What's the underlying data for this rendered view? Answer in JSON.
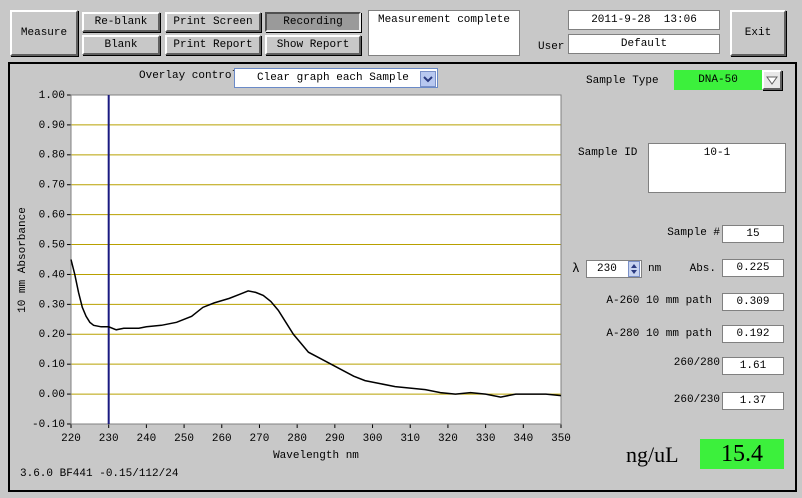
{
  "toolbar": {
    "measure": "Measure",
    "reblank": "Re-blank",
    "blank": "Blank",
    "print_screen": "Print Screen",
    "print_report": "Print Report",
    "recording": "Recording",
    "show_report": "Show Report",
    "status": "Measurement complete",
    "datetime": "2011-9-28  13:06",
    "user_label": "User",
    "user": "Default",
    "exit": "Exit"
  },
  "overlay": {
    "label": "Overlay control",
    "value": "Clear graph each Sample"
  },
  "chart_data": {
    "type": "line",
    "x_label": "Wavelength nm",
    "y_label": "10 mm Absorbance",
    "x": [
      220,
      221,
      222,
      223,
      224,
      225,
      226,
      228,
      230,
      232,
      234,
      236,
      238,
      240,
      244,
      248,
      252,
      255,
      258,
      262,
      265,
      267,
      269,
      271,
      273,
      275,
      277,
      279,
      281,
      283,
      286,
      289,
      292,
      295,
      298,
      302,
      306,
      310,
      314,
      318,
      322,
      326,
      330,
      334,
      338,
      342,
      346,
      350
    ],
    "series": [
      {
        "color": "#000000",
        "values": [
          0.45,
          0.4,
          0.34,
          0.29,
          0.26,
          0.24,
          0.23,
          0.225,
          0.225,
          0.215,
          0.22,
          0.22,
          0.22,
          0.225,
          0.23,
          0.24,
          0.26,
          0.29,
          0.305,
          0.32,
          0.335,
          0.345,
          0.34,
          0.33,
          0.31,
          0.28,
          0.24,
          0.2,
          0.17,
          0.14,
          0.12,
          0.1,
          0.08,
          0.06,
          0.045,
          0.035,
          0.025,
          0.02,
          0.015,
          0.005,
          0.0,
          0.005,
          0.0,
          -0.01,
          0.0,
          0.0,
          0.0,
          -0.005
        ]
      }
    ],
    "xlim": [
      220,
      350
    ],
    "xticks": [
      220,
      230,
      240,
      250,
      260,
      270,
      280,
      290,
      300,
      310,
      320,
      330,
      340,
      350
    ],
    "ylim": [
      -0.1,
      1.0
    ],
    "yticks": [
      {
        "value": -0.1,
        "label": "-0.10"
      },
      {
        "value": 0,
        "label": "0.00"
      },
      {
        "value": 0.1,
        "label": "0.10"
      },
      {
        "value": 0.2,
        "label": "0.20"
      },
      {
        "value": 0.3,
        "label": "0.30"
      },
      {
        "value": 0.4,
        "label": "0.40"
      },
      {
        "value": 0.5,
        "label": "0.50"
      },
      {
        "value": 0.6,
        "label": "0.60"
      },
      {
        "value": 0.7,
        "label": "0.70"
      },
      {
        "value": 0.8,
        "label": "0.80"
      },
      {
        "value": 0.9,
        "label": "0.90"
      },
      {
        "value": 1.0,
        "label": "1.00"
      }
    ],
    "grid": true,
    "grid_color": "#b8a000",
    "marker_color": "#1a1a80"
  },
  "panel": {
    "sample_type_label": "Sample Type",
    "sample_type": "DNA-50",
    "sample_id_label": "Sample ID",
    "sample_id": "10-1",
    "sample_num_label": "Sample #",
    "sample_num": 15,
    "lambda_symbol": "λ",
    "wavelength": 230,
    "nm": "nm",
    "abs_label": "Abs.",
    "abs": 0.225,
    "a260_label": "A-260 10 mm path",
    "a260": 0.309,
    "a280_label": "A-280 10 mm path",
    "a280": 0.192,
    "r260_280_label": "260/280",
    "r260_280": 1.61,
    "r260_230_label": "260/230",
    "r260_230": 1.37,
    "conc_label": "ng/uL",
    "conc": 15.4
  },
  "footer": "3.6.0 BF441 -0.15/112/24"
}
